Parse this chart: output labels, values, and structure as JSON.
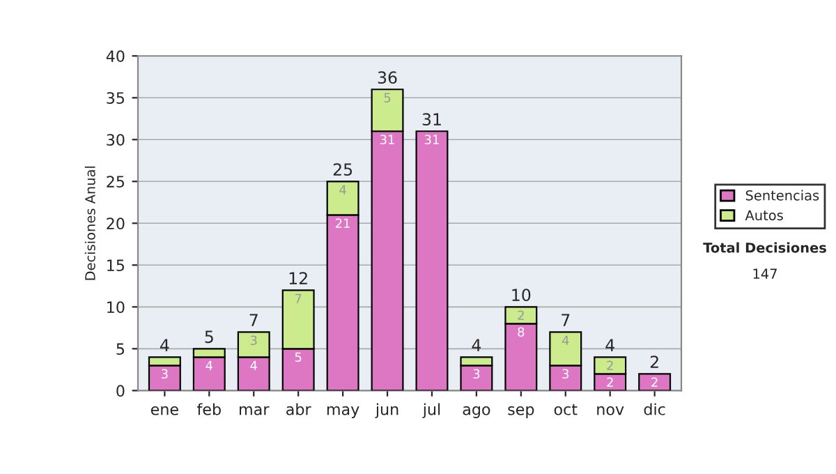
{
  "chart_data": {
    "type": "bar",
    "stacked": true,
    "ylabel": "Decisiones Anual",
    "categories": [
      "ene",
      "feb",
      "mar",
      "abr",
      "may",
      "jun",
      "jul",
      "ago",
      "sep",
      "oct",
      "nov",
      "dic"
    ],
    "series": [
      {
        "name": "Sentencias",
        "color": "#dd77c4",
        "values": [
          3,
          4,
          4,
          5,
          21,
          31,
          31,
          3,
          8,
          3,
          2,
          2
        ],
        "value_labels": [
          "3",
          "4",
          "4",
          "5",
          "21",
          "31",
          "31",
          "3",
          "8",
          "3",
          "2",
          "2"
        ]
      },
      {
        "name": "Autos",
        "color": "#cceb8c",
        "values": [
          1,
          1,
          3,
          7,
          4,
          5,
          0,
          1,
          2,
          4,
          2,
          0
        ],
        "value_labels": [
          null,
          null,
          "3",
          "7",
          "4",
          "5",
          null,
          null,
          "2",
          "4",
          "2",
          null
        ]
      }
    ],
    "totals": [
      "4",
      "5",
      "7",
      "12",
      "25",
      "36",
      "31",
      "4",
      "10",
      "7",
      "4",
      "2"
    ],
    "ylim": [
      0,
      40
    ],
    "yticks": [
      0,
      5,
      10,
      15,
      20,
      25,
      30,
      35,
      40
    ],
    "grid": "y",
    "legend": "right",
    "annotations": [
      "Total Decisiones",
      "147"
    ]
  }
}
